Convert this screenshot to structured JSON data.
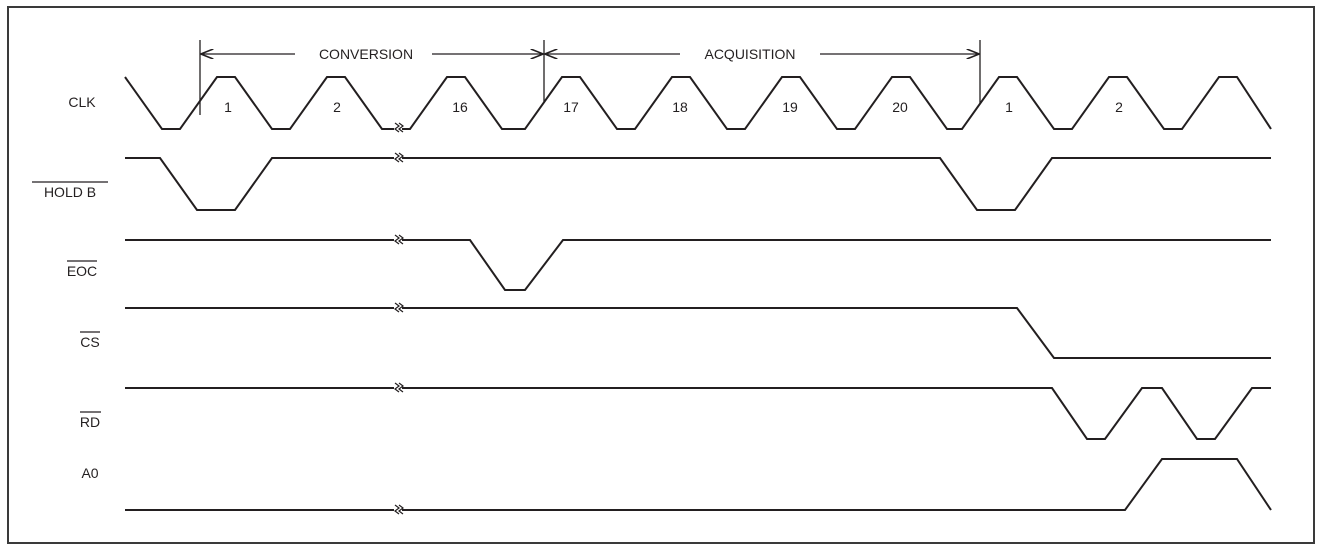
{
  "phases": [
    {
      "label": "CONVERSION"
    },
    {
      "label": "ACQUISITION"
    }
  ],
  "signals": [
    {
      "id": "clk",
      "label": "CLK",
      "active_low": false
    },
    {
      "id": "hold",
      "label": "HOLD B",
      "active_low": true
    },
    {
      "id": "eoc",
      "label": "EOC",
      "active_low": true
    },
    {
      "id": "cs",
      "label": "CS",
      "active_low": true
    },
    {
      "id": "rd",
      "label": "RD",
      "active_low": true
    },
    {
      "id": "a0",
      "label": "A0",
      "active_low": false
    }
  ],
  "clock_numbers": [
    "1",
    "2",
    "16",
    "17",
    "18",
    "19",
    "20",
    "1",
    "2"
  ]
}
